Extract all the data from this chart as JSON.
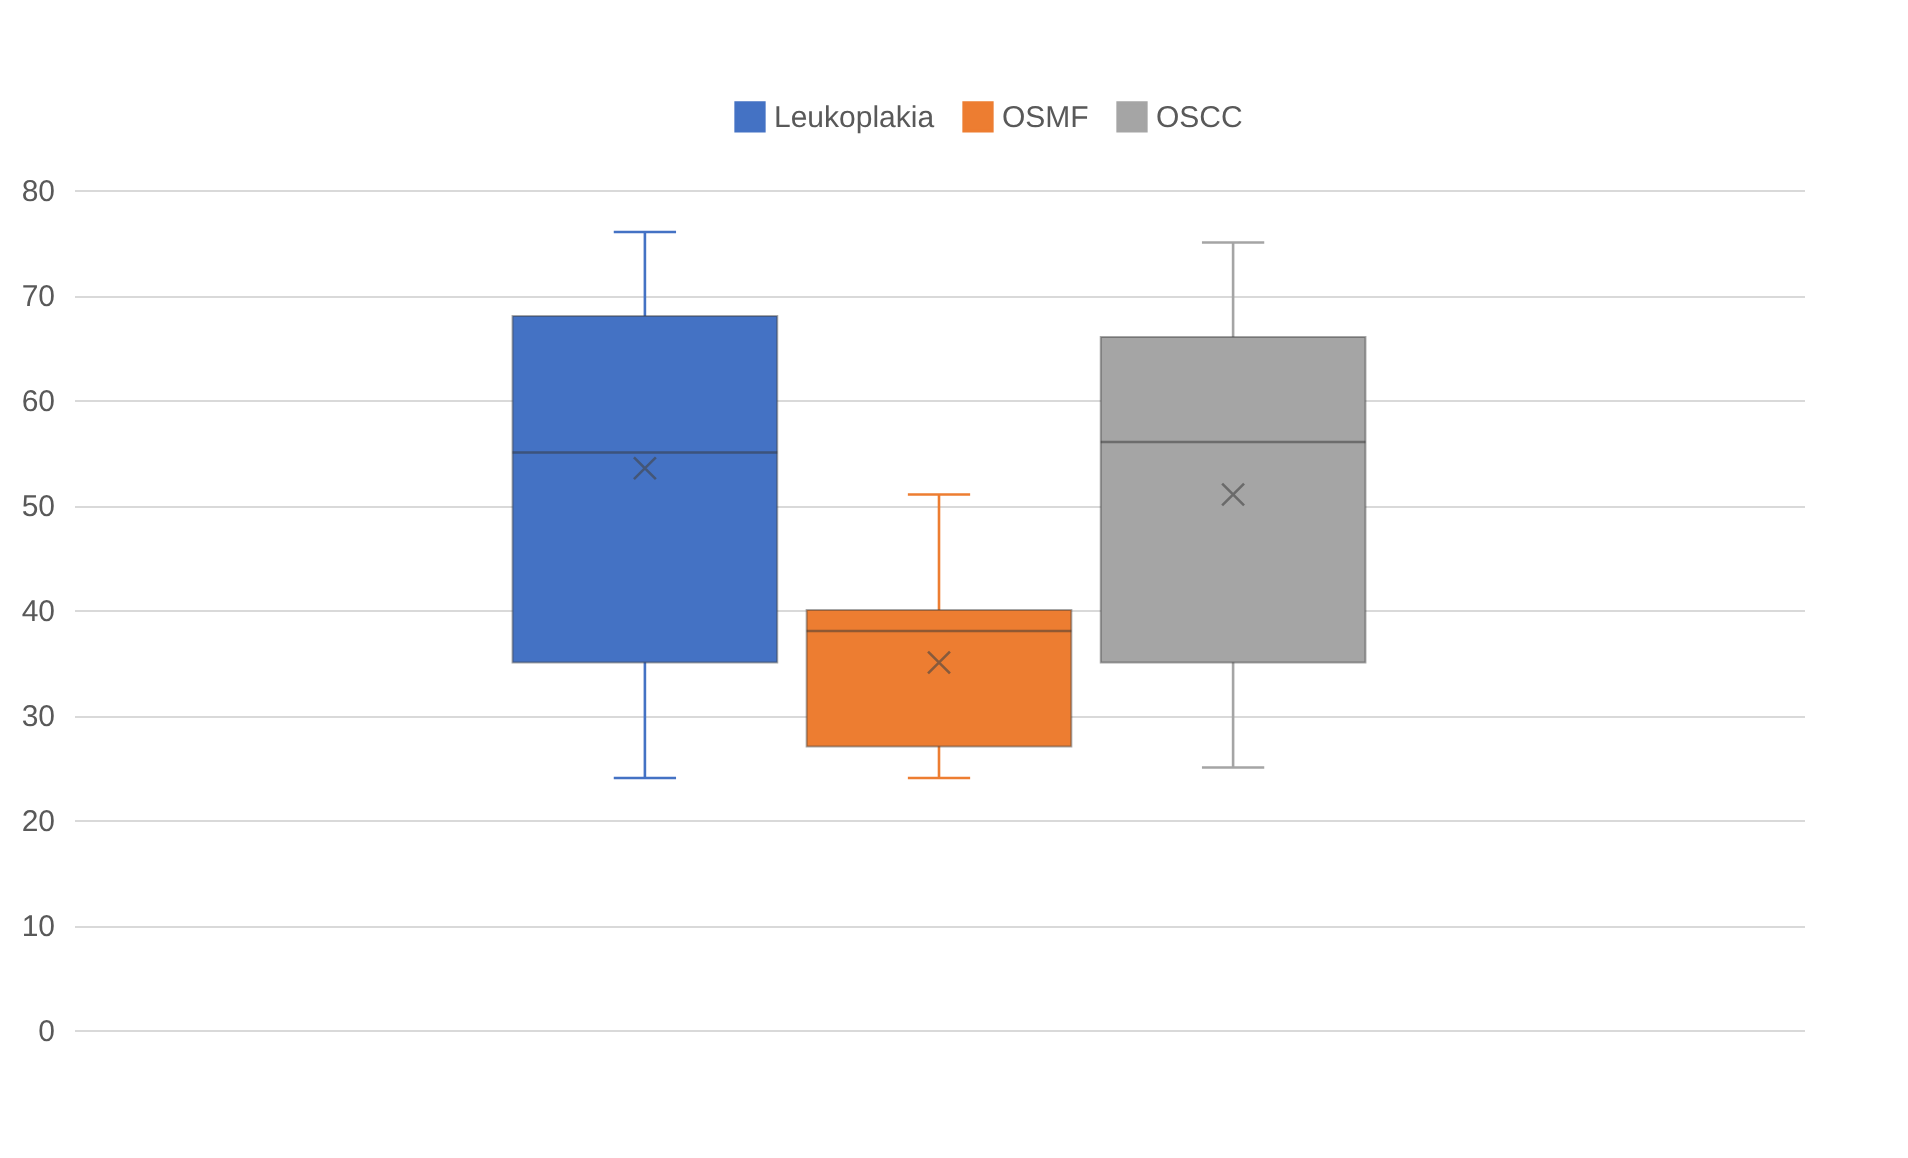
{
  "chart_data": {
    "type": "box",
    "categories": [
      null
    ],
    "ylim": [
      0,
      80
    ],
    "yticks": [
      0,
      10,
      20,
      30,
      40,
      50,
      60,
      70,
      80
    ],
    "grid": "y",
    "legend": "top",
    "marker": "cross",
    "tick_labels": "y",
    "series": [
      {
        "name": "Leukoplakia",
        "color": "#4472c4",
        "boxes": [
          {
            "low": 24,
            "q1": 35,
            "median": 55,
            "q3": 68,
            "high": 76,
            "mean": 53.5
          }
        ]
      },
      {
        "name": "OSMF",
        "color": "#ed7d31",
        "boxes": [
          {
            "low": 24,
            "q1": 27,
            "median": 38,
            "q3": 40,
            "high": 51,
            "mean": 35
          }
        ]
      },
      {
        "name": "OSCC",
        "color": "#a5a5a5",
        "boxes": [
          {
            "low": 25,
            "q1": 35,
            "median": 56,
            "q3": 66,
            "high": 75,
            "mean": 51
          }
        ]
      }
    ]
  }
}
